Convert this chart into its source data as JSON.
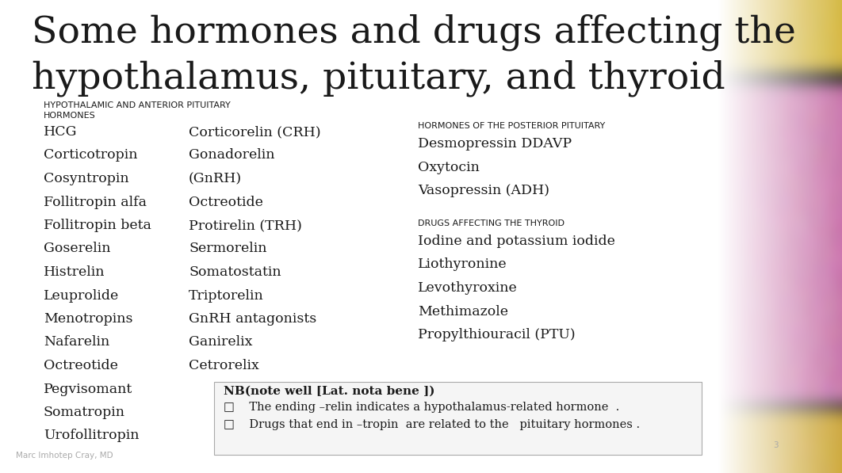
{
  "title_line1": "Some hormones and drugs affecting the",
  "title_line2": "hypothalamus, pituitary, and thyroid",
  "title_fontsize": 34,
  "title_color": "#1a1a1a",
  "bg_color": "#ffffff",
  "section1_header_line1": "HYPOTHALAMIC AND ANTERIOR PITUITARY",
  "section1_header_line2": "HORMONES",
  "section1_col1": [
    "HCG",
    "Corticotropin",
    "Cosyntropin",
    "Follitropin alfa",
    "Follitropin beta",
    "Goserelin",
    "Histrelin",
    "Leuprolide",
    "Menotropins",
    "Nafarelin",
    "Octreotide",
    "Pegvisomant",
    "Somatropin",
    "Urofollitropin"
  ],
  "section1_col2_lines": [
    [
      "Corticorelin (CRH)",
      0
    ],
    [
      "Gonadorelin",
      1
    ],
    [
      "(GnRH)",
      2
    ],
    [
      "Octreotide",
      3
    ],
    [
      "Protirelin (TRH)",
      4
    ],
    [
      "Sermorelin",
      5
    ],
    [
      "Somatostatin",
      6
    ],
    [
      "Triptorelin",
      7
    ],
    [
      "GnRH antagonists",
      8
    ],
    [
      "Ganirelix",
      9
    ],
    [
      "Cetrorelix",
      10
    ]
  ],
  "section2_header": "HORMONES OF THE POSTERIOR PITUITARY",
  "section2_items": [
    "Desmopressin DDAVP",
    "Oxytocin",
    "Vasopressin (ADH)"
  ],
  "section3_header": "DRUGS AFFECTING THE THYROID",
  "section3_items": [
    "Iodine and potassium iodide",
    "Liothyronine",
    "Levothyroxine",
    "Methimazole",
    "Propylthiouracil (PTU)"
  ],
  "nb_title": "NB(note well [Lat. nota bene ])",
  "nb_bullets": [
    "The ending –relin indicates a hypothalamus-related hormone  .",
    "Drugs that end in –tropin  are related to the   pituitary hormones ."
  ],
  "footer": "Marc Imhotep Cray, MD",
  "page_num": "3",
  "header_fontsize": 8.0,
  "body_fontsize": 12.5,
  "nb_title_fontsize": 11.0,
  "nb_body_fontsize": 10.5,
  "small_fontsize": 7.5
}
